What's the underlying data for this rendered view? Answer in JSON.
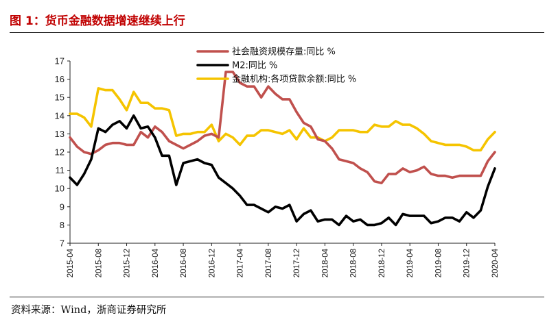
{
  "page": {
    "title": "图 1：货币金融数据增速继续上行",
    "source": "资料来源：Wind，浙商证券研究所"
  },
  "chart_data": {
    "type": "line",
    "title": "货币金融数据增速继续上行",
    "xlabel": "",
    "ylabel": "",
    "ylim": [
      7,
      17
    ],
    "yticks": [
      7,
      8,
      9,
      10,
      11,
      12,
      13,
      14,
      15,
      16,
      17
    ],
    "x_range": [
      "2015-04",
      "2020-04"
    ],
    "x_ticks": [
      "2015-04",
      "2015-08",
      "2015-12",
      "2016-04",
      "2016-08",
      "2016-12",
      "2017-04",
      "2017-08",
      "2017-12",
      "2018-04",
      "2018-08",
      "2018-12",
      "2019-04",
      "2019-08",
      "2019-12",
      "2020-04"
    ],
    "legend_position": "top-right",
    "series": [
      {
        "name": "社会融资规模存量:同比 %",
        "color": "#c0504d",
        "points": [
          [
            "2015-04",
            12.8
          ],
          [
            "2015-05",
            12.3
          ],
          [
            "2015-06",
            12.0
          ],
          [
            "2015-07",
            11.9
          ],
          [
            "2015-08",
            12.1
          ],
          [
            "2015-09",
            12.4
          ],
          [
            "2015-10",
            12.5
          ],
          [
            "2015-11",
            12.5
          ],
          [
            "2015-12",
            12.4
          ],
          [
            "2016-01",
            12.4
          ],
          [
            "2016-02",
            13.1
          ],
          [
            "2016-03",
            12.8
          ],
          [
            "2016-04",
            13.4
          ],
          [
            "2016-05",
            13.1
          ],
          [
            "2016-06",
            12.6
          ],
          [
            "2016-07",
            12.4
          ],
          [
            "2016-08",
            12.2
          ],
          [
            "2016-09",
            12.4
          ],
          [
            "2016-10",
            12.6
          ],
          [
            "2016-11",
            12.9
          ],
          [
            "2016-12",
            13.0
          ],
          [
            "2017-01",
            12.8
          ],
          [
            "2017-02",
            16.4
          ],
          [
            "2017-03",
            16.4
          ],
          [
            "2017-04",
            15.8
          ],
          [
            "2017-05",
            15.6
          ],
          [
            "2017-06",
            15.6
          ],
          [
            "2017-07",
            15.0
          ],
          [
            "2017-08",
            15.6
          ],
          [
            "2017-09",
            15.2
          ],
          [
            "2017-10",
            14.9
          ],
          [
            "2017-11",
            14.9
          ],
          [
            "2017-12",
            14.2
          ],
          [
            "2018-01",
            13.6
          ],
          [
            "2018-02",
            13.4
          ],
          [
            "2018-03",
            12.7
          ],
          [
            "2018-04",
            12.6
          ],
          [
            "2018-05",
            12.2
          ],
          [
            "2018-06",
            11.6
          ],
          [
            "2018-07",
            11.5
          ],
          [
            "2018-08",
            11.4
          ],
          [
            "2018-09",
            11.1
          ],
          [
            "2018-10",
            10.9
          ],
          [
            "2018-11",
            10.4
          ],
          [
            "2018-12",
            10.3
          ],
          [
            "2019-01",
            10.8
          ],
          [
            "2019-02",
            10.8
          ],
          [
            "2019-03",
            11.1
          ],
          [
            "2019-04",
            10.9
          ],
          [
            "2019-05",
            11.0
          ],
          [
            "2019-06",
            11.2
          ],
          [
            "2019-07",
            10.8
          ],
          [
            "2019-08",
            10.7
          ],
          [
            "2019-09",
            10.7
          ],
          [
            "2019-10",
            10.6
          ],
          [
            "2019-11",
            10.7
          ],
          [
            "2019-12",
            10.7
          ],
          [
            "2020-01",
            10.7
          ],
          [
            "2020-02",
            10.7
          ],
          [
            "2020-03",
            11.5
          ],
          [
            "2020-04",
            12.0
          ]
        ]
      },
      {
        "name": "M2:同比 %",
        "color": "#000000",
        "points": [
          [
            "2015-04",
            10.6
          ],
          [
            "2015-05",
            10.2
          ],
          [
            "2015-06",
            10.8
          ],
          [
            "2015-07",
            11.6
          ],
          [
            "2015-08",
            13.3
          ],
          [
            "2015-09",
            13.1
          ],
          [
            "2015-10",
            13.5
          ],
          [
            "2015-11",
            13.7
          ],
          [
            "2015-12",
            13.3
          ],
          [
            "2016-01",
            14.0
          ],
          [
            "2016-02",
            13.3
          ],
          [
            "2016-03",
            13.4
          ],
          [
            "2016-04",
            12.8
          ],
          [
            "2016-05",
            11.8
          ],
          [
            "2016-06",
            11.8
          ],
          [
            "2016-07",
            10.2
          ],
          [
            "2016-08",
            11.4
          ],
          [
            "2016-09",
            11.5
          ],
          [
            "2016-10",
            11.6
          ],
          [
            "2016-11",
            11.4
          ],
          [
            "2016-12",
            11.3
          ],
          [
            "2017-01",
            10.6
          ],
          [
            "2017-02",
            10.3
          ],
          [
            "2017-03",
            10.0
          ],
          [
            "2017-04",
            9.6
          ],
          [
            "2017-05",
            9.1
          ],
          [
            "2017-06",
            9.1
          ],
          [
            "2017-07",
            8.9
          ],
          [
            "2017-08",
            8.7
          ],
          [
            "2017-09",
            9.0
          ],
          [
            "2017-10",
            8.9
          ],
          [
            "2017-11",
            9.1
          ],
          [
            "2017-12",
            8.2
          ],
          [
            "2018-01",
            8.6
          ],
          [
            "2018-02",
            8.8
          ],
          [
            "2018-03",
            8.2
          ],
          [
            "2018-04",
            8.3
          ],
          [
            "2018-05",
            8.3
          ],
          [
            "2018-06",
            8.0
          ],
          [
            "2018-07",
            8.5
          ],
          [
            "2018-08",
            8.2
          ],
          [
            "2018-09",
            8.3
          ],
          [
            "2018-10",
            8.0
          ],
          [
            "2018-11",
            8.0
          ],
          [
            "2018-12",
            8.1
          ],
          [
            "2019-01",
            8.4
          ],
          [
            "2019-02",
            8.0
          ],
          [
            "2019-03",
            8.6
          ],
          [
            "2019-04",
            8.5
          ],
          [
            "2019-05",
            8.5
          ],
          [
            "2019-06",
            8.5
          ],
          [
            "2019-07",
            8.1
          ],
          [
            "2019-08",
            8.2
          ],
          [
            "2019-09",
            8.4
          ],
          [
            "2019-10",
            8.4
          ],
          [
            "2019-11",
            8.2
          ],
          [
            "2019-12",
            8.7
          ],
          [
            "2020-01",
            8.4
          ],
          [
            "2020-02",
            8.8
          ],
          [
            "2020-03",
            10.1
          ],
          [
            "2020-04",
            11.1
          ]
        ]
      },
      {
        "name": "金融机构:各项贷款余额:同比 %",
        "color": "#f5c400",
        "points": [
          [
            "2015-04",
            14.1
          ],
          [
            "2015-05",
            14.1
          ],
          [
            "2015-06",
            13.9
          ],
          [
            "2015-07",
            13.4
          ],
          [
            "2015-08",
            15.5
          ],
          [
            "2015-09",
            15.4
          ],
          [
            "2015-10",
            15.4
          ],
          [
            "2015-11",
            14.9
          ],
          [
            "2015-12",
            14.3
          ],
          [
            "2016-01",
            15.3
          ],
          [
            "2016-02",
            14.7
          ],
          [
            "2016-03",
            14.7
          ],
          [
            "2016-04",
            14.4
          ],
          [
            "2016-05",
            14.4
          ],
          [
            "2016-06",
            14.3
          ],
          [
            "2016-07",
            12.9
          ],
          [
            "2016-08",
            13.0
          ],
          [
            "2016-09",
            13.0
          ],
          [
            "2016-10",
            13.1
          ],
          [
            "2016-11",
            13.1
          ],
          [
            "2016-12",
            13.5
          ],
          [
            "2017-01",
            12.6
          ],
          [
            "2017-02",
            13.0
          ],
          [
            "2017-03",
            12.8
          ],
          [
            "2017-04",
            12.4
          ],
          [
            "2017-05",
            12.9
          ],
          [
            "2017-06",
            12.9
          ],
          [
            "2017-07",
            13.2
          ],
          [
            "2017-08",
            13.2
          ],
          [
            "2017-09",
            13.1
          ],
          [
            "2017-10",
            13.0
          ],
          [
            "2017-11",
            13.2
          ],
          [
            "2017-12",
            12.7
          ],
          [
            "2018-01",
            13.3
          ],
          [
            "2018-02",
            12.8
          ],
          [
            "2018-03",
            12.8
          ],
          [
            "2018-04",
            12.6
          ],
          [
            "2018-05",
            12.8
          ],
          [
            "2018-06",
            13.2
          ],
          [
            "2018-07",
            13.2
          ],
          [
            "2018-08",
            13.2
          ],
          [
            "2018-09",
            13.1
          ],
          [
            "2018-10",
            13.1
          ],
          [
            "2018-11",
            13.5
          ],
          [
            "2018-12",
            13.4
          ],
          [
            "2019-01",
            13.4
          ],
          [
            "2019-02",
            13.7
          ],
          [
            "2019-03",
            13.5
          ],
          [
            "2019-04",
            13.5
          ],
          [
            "2019-05",
            13.3
          ],
          [
            "2019-06",
            13.0
          ],
          [
            "2019-07",
            12.6
          ],
          [
            "2019-08",
            12.5
          ],
          [
            "2019-09",
            12.4
          ],
          [
            "2019-10",
            12.4
          ],
          [
            "2019-11",
            12.4
          ],
          [
            "2019-12",
            12.3
          ],
          [
            "2020-01",
            12.1
          ],
          [
            "2020-02",
            12.1
          ],
          [
            "2020-03",
            12.7
          ],
          [
            "2020-04",
            13.1
          ]
        ]
      }
    ]
  }
}
